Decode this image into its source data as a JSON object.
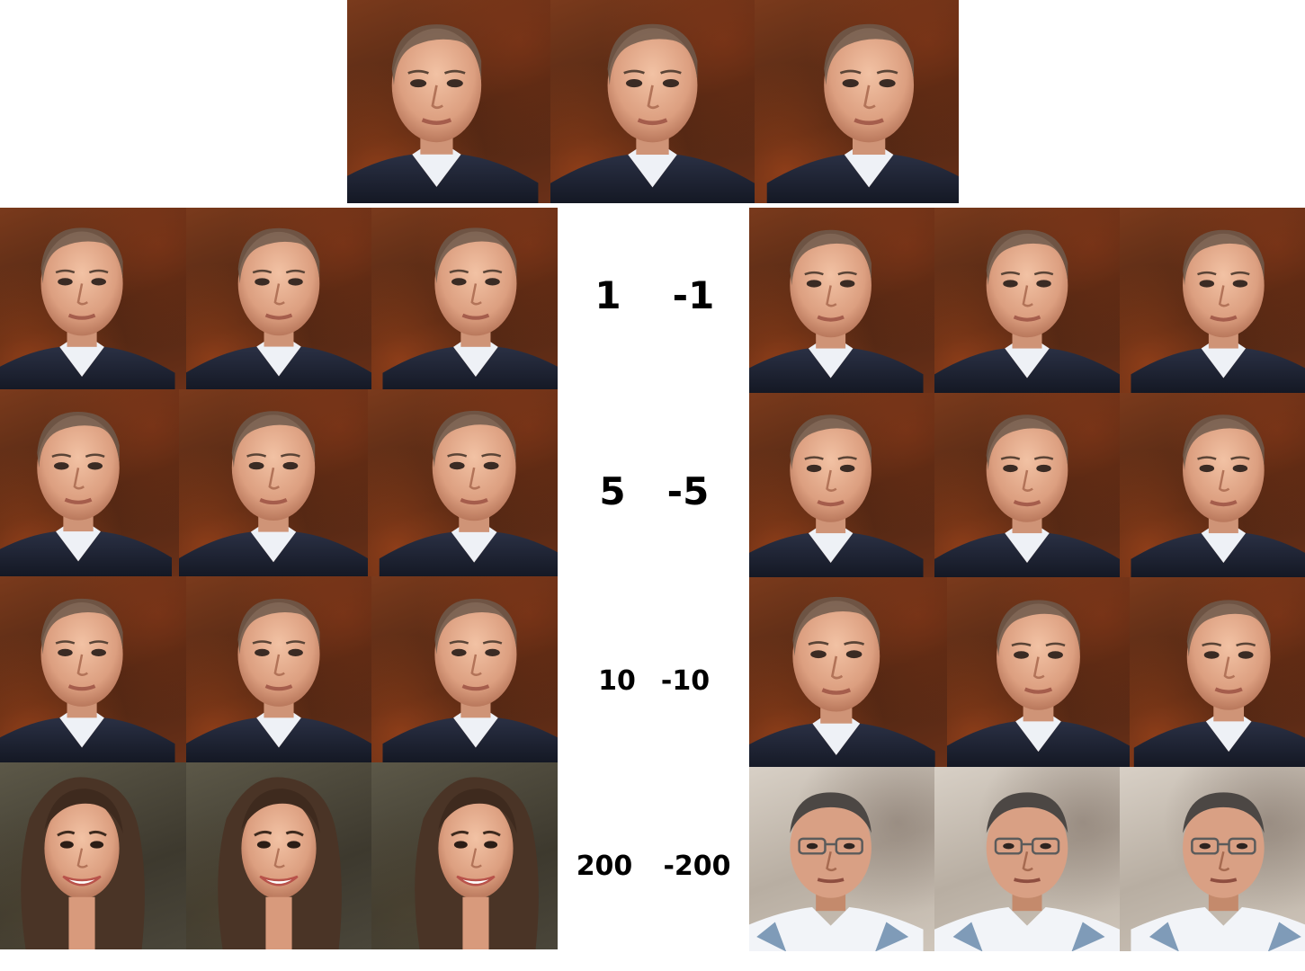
{
  "labels": {
    "row1": {
      "left": "1",
      "right": "-1"
    },
    "row2": {
      "left": "5",
      "right": "-5"
    },
    "row3": {
      "left": "10",
      "right": "-10"
    },
    "row4": {
      "left": "200",
      "right": "-200"
    }
  },
  "colors": {
    "background": "#ffffff",
    "label": "#000000",
    "skin": "#e2a98a",
    "hair_dark": "#3b2f28",
    "suit": "#1d2233",
    "shirt": "#e8ecf2"
  },
  "portraits": {
    "man_suit": "man-in-suit-portrait",
    "woman": "smiling-woman-portrait",
    "man_glasses": "man-with-glasses-portrait"
  }
}
